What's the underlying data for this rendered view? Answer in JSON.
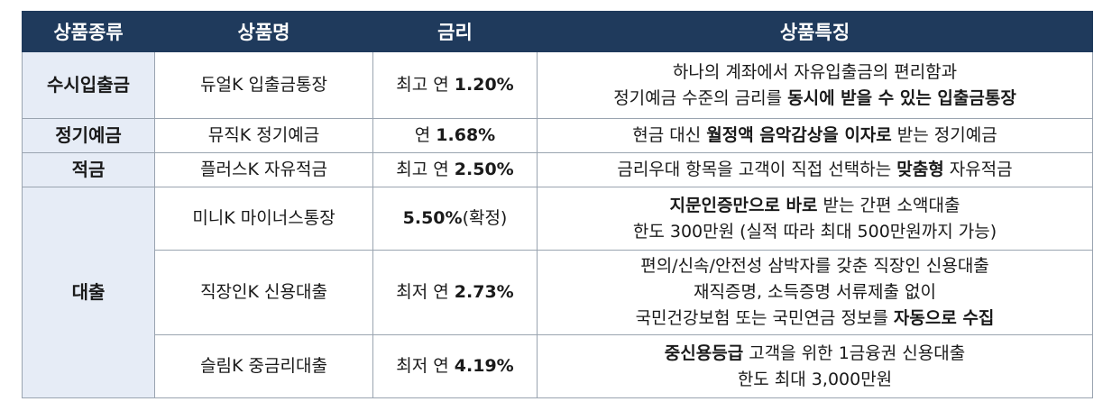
{
  "headers": [
    "상품종류",
    "상품명",
    "금리",
    "상품특징"
  ],
  "rows": [
    {
      "category": "수시입출금",
      "name": "듀얼K 입출금통장",
      "rate_prefix": "최고 연 ",
      "rate_bold": "1.20%",
      "rate_suffix": "",
      "features": [
        [
          {
            "t": "하나의 계좌에서 자유입출금의 편리함과",
            "b": false
          }
        ],
        [
          {
            "t": "정기예금 수준의 금리를 ",
            "b": false
          },
          {
            "t": "동시에 받을 수 있는 입출금통장",
            "b": true
          }
        ]
      ]
    },
    {
      "category": "정기예금",
      "name": "뮤직K 정기예금",
      "rate_prefix": "연 ",
      "rate_bold": "1.68%",
      "rate_suffix": "",
      "features": [
        [
          {
            "t": "현금 대신 ",
            "b": false
          },
          {
            "t": "월정액 음악감상을 이자로",
            "b": true
          },
          {
            "t": " 받는 정기예금",
            "b": false
          }
        ]
      ]
    },
    {
      "category": "적금",
      "name": "플러스K 자유적금",
      "rate_prefix": "최고 연 ",
      "rate_bold": "2.50%",
      "rate_suffix": "",
      "features": [
        [
          {
            "t": "금리우대 항목을 고객이 직접 선택하는 ",
            "b": false
          },
          {
            "t": "맞춤형",
            "b": true
          },
          {
            "t": " 자유적금",
            "b": false
          }
        ]
      ]
    },
    {
      "category": "대출",
      "name": "미니K 마이너스통장",
      "rate_prefix": "",
      "rate_bold": "5.50%",
      "rate_suffix": "(확정)",
      "features": [
        [
          {
            "t": "지문인증만으로 바로",
            "b": true
          },
          {
            "t": " 받는 간편 소액대출",
            "b": false
          }
        ],
        [
          {
            "t": "한도 300만원 (실적 따라 최대 500만원까지 가능)",
            "b": false
          }
        ]
      ]
    },
    {
      "category": "",
      "name": "직장인K 신용대출",
      "rate_prefix": "최저 연 ",
      "rate_bold": "2.73%",
      "rate_suffix": "",
      "features": [
        [
          {
            "t": "편의/신속/안전성 삼박자를 갖춘 직장인 신용대출",
            "b": false
          }
        ],
        [
          {
            "t": "재직증명, 소득증명 서류제출 없이",
            "b": false
          }
        ],
        [
          {
            "t": "국민건강보험 또는 국민연금 정보를 ",
            "b": false
          },
          {
            "t": "자동으로 수집",
            "b": true
          }
        ]
      ]
    },
    {
      "category": "",
      "name": "슬림K 중금리대출",
      "rate_prefix": "최저 연 ",
      "rate_bold": "4.19%",
      "rate_suffix": "",
      "features": [
        [
          {
            "t": "중신용등급",
            "b": true
          },
          {
            "t": " 고객을 위한 1금융권 신용대출",
            "b": false
          }
        ],
        [
          {
            "t": "한도 최대 3,000만원",
            "b": false
          }
        ]
      ]
    }
  ]
}
